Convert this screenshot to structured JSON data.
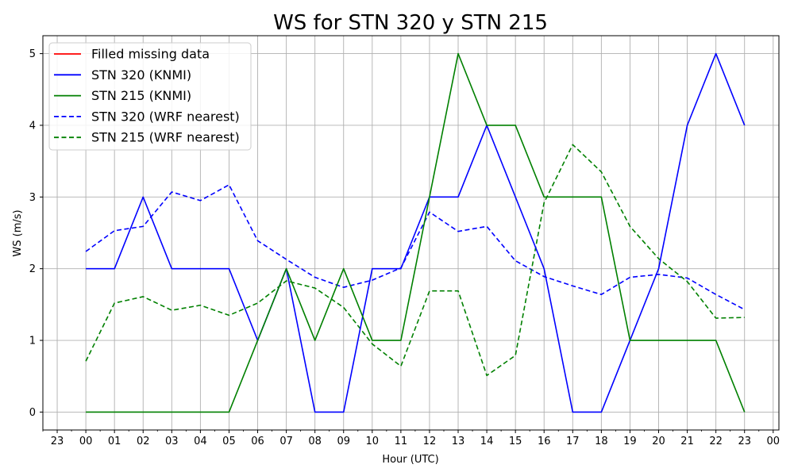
{
  "chart_data": {
    "type": "line",
    "title": "WS for STN 320 y STN 215",
    "xlabel": "Hour (UTC)",
    "ylabel": "WS (m/s)",
    "x_tick_labels": [
      "23",
      "00",
      "01",
      "02",
      "03",
      "04",
      "05",
      "06",
      "07",
      "08",
      "09",
      "10",
      "11",
      "12",
      "13",
      "14",
      "15",
      "16",
      "17",
      "18",
      "19",
      "20",
      "21",
      "22",
      "23",
      "00"
    ],
    "x_hours": [
      0,
      1,
      2,
      3,
      4,
      5,
      6,
      7,
      8,
      9,
      10,
      11,
      12,
      13,
      14,
      15,
      16,
      17,
      18,
      19,
      20,
      21,
      22,
      23
    ],
    "y_ticks": [
      0,
      1,
      2,
      3,
      4,
      5
    ],
    "ylim": [
      -0.25,
      5.25
    ],
    "xlim": [
      -1.5,
      24.2
    ],
    "grid": true,
    "legend_position": "top-left",
    "series": [
      {
        "name": "Filled missing data",
        "color": "#ff0000",
        "style": "solid",
        "values": []
      },
      {
        "name": "STN 320 (KNMI)",
        "color": "#0000ff",
        "style": "solid",
        "values": [
          2,
          2,
          3,
          2,
          2,
          2,
          1,
          2,
          0,
          0,
          2,
          2,
          3,
          3,
          4,
          3,
          2,
          0,
          0,
          1,
          2,
          4,
          5,
          4
        ]
      },
      {
        "name": "STN 215 (KNMI)",
        "color": "#008000",
        "style": "solid",
        "values": [
          0,
          0,
          0,
          0,
          0,
          0,
          1,
          2,
          1,
          2,
          1,
          1,
          3,
          5,
          4,
          4,
          3,
          3,
          3,
          1,
          1,
          1,
          1,
          0
        ]
      },
      {
        "name": "STN 320 (WRF nearest)",
        "color": "#0000ff",
        "style": "dashed",
        "values": [
          2.24,
          2.53,
          2.59,
          3.07,
          2.95,
          3.17,
          2.39,
          2.13,
          1.88,
          1.74,
          1.84,
          2.01,
          2.79,
          2.52,
          2.59,
          2.11,
          1.89,
          1.76,
          1.64,
          1.88,
          1.92,
          1.87,
          1.64,
          1.43
        ]
      },
      {
        "name": "STN 215 (WRF nearest)",
        "color": "#008000",
        "style": "dashed",
        "values": [
          0.71,
          1.52,
          1.61,
          1.42,
          1.49,
          1.35,
          1.52,
          1.83,
          1.73,
          1.46,
          0.95,
          0.64,
          1.69,
          1.69,
          0.51,
          0.79,
          2.92,
          3.73,
          3.35,
          2.59,
          2.14,
          1.82,
          1.31,
          1.32
        ]
      }
    ]
  }
}
